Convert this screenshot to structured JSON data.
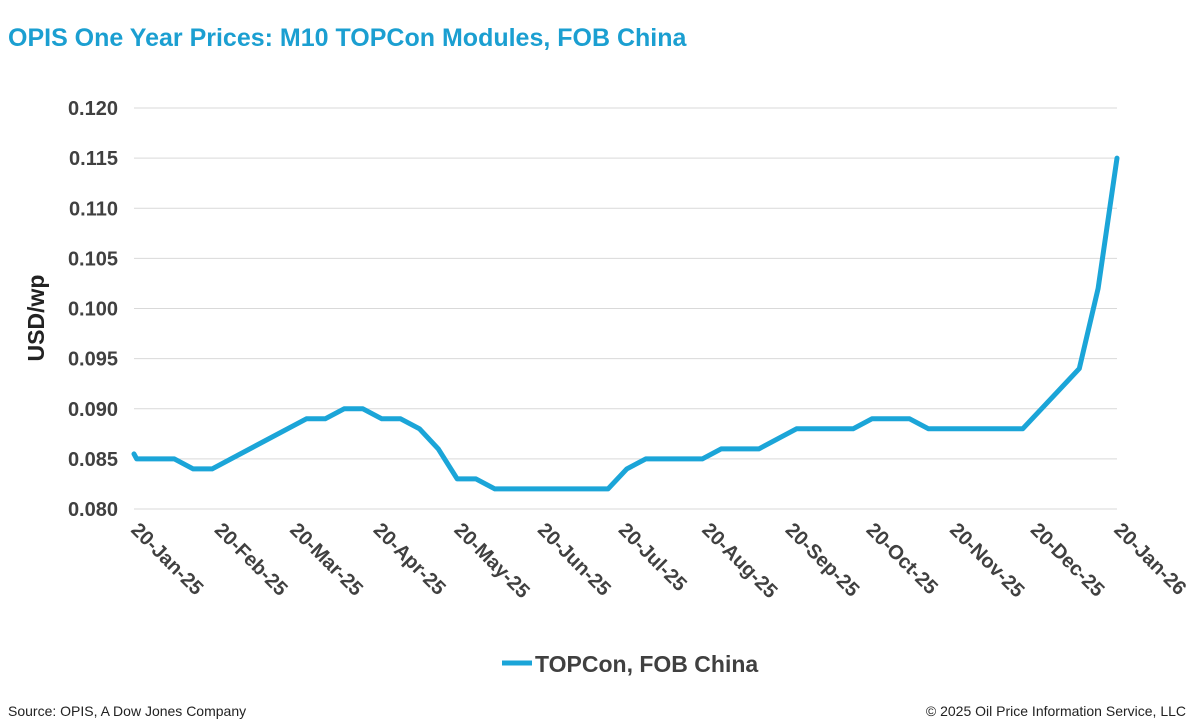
{
  "header": {
    "title": "OPIS One Year Prices: M10 TOPCon Modules, FOB China"
  },
  "footer": {
    "source": "Source: OPIS, A Dow Jones Company",
    "copyright": "© 2025 Oil Price Information Service, LLC"
  },
  "colors": {
    "title": "#1b9fd1",
    "series": "#1ba5d8",
    "grid": "#d9d9d9",
    "tick_text": "#404040"
  },
  "chart_data": {
    "type": "line",
    "title": "OPIS One Year Prices: M10 TOPCon Modules, FOB China",
    "xlabel": "",
    "ylabel": "USD/wp",
    "ylim": [
      0.08,
      0.12
    ],
    "xlim": [
      "2025-01-20",
      "2026-01-20"
    ],
    "y_ticks": [
      "0.120",
      "0.115",
      "0.110",
      "0.105",
      "0.100",
      "0.095",
      "0.090",
      "0.085",
      "0.080"
    ],
    "x_ticks": [
      {
        "label": "20-Jan-25",
        "date": "2025-01-20"
      },
      {
        "label": "20-Feb-25",
        "date": "2025-02-20"
      },
      {
        "label": "20-Mar-25",
        "date": "2025-03-20"
      },
      {
        "label": "20-Apr-25",
        "date": "2025-04-20"
      },
      {
        "label": "20-May-25",
        "date": "2025-05-20"
      },
      {
        "label": "20-Jun-25",
        "date": "2025-06-20"
      },
      {
        "label": "20-Jul-25",
        "date": "2025-07-20"
      },
      {
        "label": "20-Aug-25",
        "date": "2025-08-20"
      },
      {
        "label": "20-Sep-25",
        "date": "2025-09-20"
      },
      {
        "label": "20-Oct-25",
        "date": "2025-10-20"
      },
      {
        "label": "20-Nov-25",
        "date": "2025-11-20"
      },
      {
        "label": "20-Dec-25",
        "date": "2025-12-20"
      },
      {
        "label": "20-Jan-26",
        "date": "2026-01-20"
      }
    ],
    "grid": true,
    "legend_position": "bottom",
    "series": [
      {
        "name": "TOPCon, FOB China",
        "points": [
          [
            "2025-01-20",
            0.0855
          ],
          [
            "2025-01-21",
            0.085
          ],
          [
            "2025-02-04",
            0.085
          ],
          [
            "2025-02-11",
            0.084
          ],
          [
            "2025-02-18",
            0.084
          ],
          [
            "2025-03-25",
            0.089
          ],
          [
            "2025-04-01",
            0.089
          ],
          [
            "2025-04-08",
            0.09
          ],
          [
            "2025-04-15",
            0.09
          ],
          [
            "2025-04-22",
            0.089
          ],
          [
            "2025-04-29",
            0.089
          ],
          [
            "2025-05-06",
            0.088
          ],
          [
            "2025-05-13",
            0.086
          ],
          [
            "2025-05-20",
            0.083
          ],
          [
            "2025-05-27",
            0.083
          ],
          [
            "2025-06-03",
            0.082
          ],
          [
            "2025-07-15",
            0.082
          ],
          [
            "2025-07-22",
            0.084
          ],
          [
            "2025-07-29",
            0.085
          ],
          [
            "2025-08-19",
            0.085
          ],
          [
            "2025-08-26",
            0.086
          ],
          [
            "2025-09-09",
            0.086
          ],
          [
            "2025-09-23",
            0.088
          ],
          [
            "2025-10-14",
            0.088
          ],
          [
            "2025-10-21",
            0.089
          ],
          [
            "2025-11-04",
            0.089
          ],
          [
            "2025-11-11",
            0.088
          ],
          [
            "2025-12-16",
            0.088
          ],
          [
            "2026-01-06",
            0.094
          ],
          [
            "2026-01-13",
            0.102
          ],
          [
            "2026-01-20",
            0.115
          ]
        ]
      }
    ]
  }
}
